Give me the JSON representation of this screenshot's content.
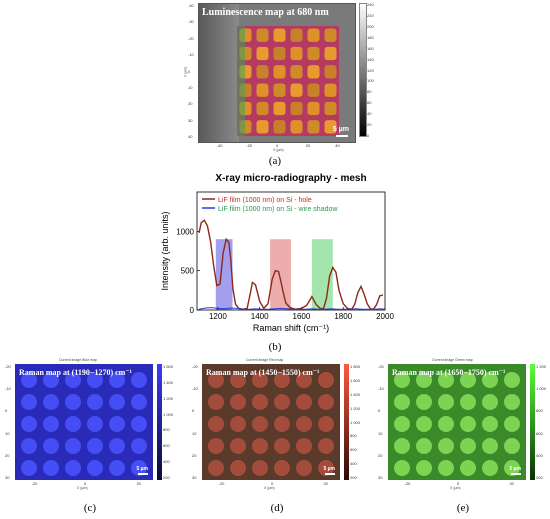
{
  "figure": {
    "panel_a": {
      "label": "(a)",
      "title": "Luminescence map at 680 nm",
      "scalebar": "5 µm",
      "colorbar_ticks": [
        "240",
        "220",
        "200",
        "180",
        "160",
        "140",
        "120",
        "100",
        "80",
        "60",
        "40",
        "20",
        "0"
      ],
      "y_ticks": [
        "-40",
        "-30",
        "-20",
        "-10",
        "0",
        "10",
        "20",
        "30",
        "40"
      ],
      "x_ticks": [
        "-40",
        "-20",
        "0",
        "20",
        "40"
      ],
      "x_label": "X (µm)",
      "y_label": "Y (µm)"
    },
    "panel_b": {
      "label": "(b)",
      "title": "X-ray micro-radiography - mesh",
      "legend": [
        {
          "text": "LiF film (1000 nm) on Si - hole",
          "color": "#8b2a1a"
        },
        {
          "text": "LiF film (1000 nm) on Si - wire shadow",
          "color": "#2a3fcf"
        }
      ]
    },
    "panel_c": {
      "label": "(c)",
      "header": "Current image    Blue map",
      "title": "Raman map at (1190−1270) cm⁻¹",
      "scalebar": "5 µm",
      "colorbar_ticks": [
        "1 600",
        "1 400",
        "1 200",
        "1 000",
        "800",
        "600",
        "400",
        "200"
      ],
      "y_ticks": [
        "-20",
        "-10",
        "0",
        "10",
        "20",
        "30"
      ],
      "x_ticks": [
        "-20",
        "0",
        "20"
      ],
      "x_label": "X (µm)",
      "y_label": "Y (µm)"
    },
    "panel_d": {
      "label": "(d)",
      "header": "Current image    Red map",
      "title": "Raman map at (1450−1550) cm⁻¹",
      "scalebar": "5 µm",
      "colorbar_ticks": [
        "1 800",
        "1 600",
        "1 400",
        "1 200",
        "1 000",
        "800",
        "600",
        "400",
        "200"
      ],
      "y_ticks": [
        "-20",
        "-10",
        "0",
        "10",
        "20",
        "30"
      ],
      "x_ticks": [
        "-20",
        "0",
        "20"
      ],
      "x_label": "X (µm)",
      "y_label": "Y (µm)"
    },
    "panel_e": {
      "label": "(e)",
      "header": "Current image    Green map",
      "title": "Raman map at (1650−1750) cm⁻¹",
      "scalebar": "5 µm",
      "colorbar_ticks": [
        "1 200",
        "1 000",
        "800",
        "600",
        "400",
        "200"
      ],
      "y_ticks": [
        "-20",
        "-10",
        "0",
        "10",
        "20",
        "30"
      ],
      "x_ticks": [
        "-20",
        "0",
        "20"
      ],
      "x_label": "X (µm)",
      "y_label": "Y (µm)"
    }
  },
  "chart_data": {
    "type": "line",
    "title": "X-ray micro-radiography - mesh",
    "xlabel": "Raman shift (cm⁻¹)",
    "ylabel": "Intensity (arb. units)",
    "xlim": [
      1100,
      2000
    ],
    "ylim": [
      0,
      1500
    ],
    "x_ticks": [
      1200,
      1400,
      1600,
      1800,
      2000
    ],
    "y_ticks": [
      0,
      500,
      1000
    ],
    "legend_placement": "top-left",
    "series": [
      {
        "name": "LiF film (1000 nm) on Si - hole",
        "color": "#8b2a1a",
        "x": [
          1110,
          1120,
          1135,
          1150,
          1165,
          1180,
          1195,
          1210,
          1225,
          1240,
          1252,
          1262,
          1272,
          1285,
          1300,
          1320,
          1340,
          1355,
          1365,
          1380,
          1400,
          1420,
          1440,
          1460,
          1475,
          1490,
          1500,
          1512,
          1525,
          1545,
          1570,
          1600,
          1625,
          1650,
          1670,
          1690,
          1705,
          1720,
          1735,
          1750,
          1765,
          1780,
          1800,
          1820,
          1840,
          1855,
          1870,
          1885,
          1900,
          1915,
          1930,
          1945,
          1960,
          1975,
          1990
        ],
        "y": [
          980,
          1110,
          1140,
          1070,
          870,
          560,
          310,
          330,
          720,
          900,
          860,
          640,
          270,
          70,
          20,
          10,
          20,
          210,
          350,
          320,
          110,
          20,
          80,
          390,
          500,
          490,
          380,
          230,
          90,
          30,
          10,
          20,
          60,
          170,
          70,
          20,
          15,
          150,
          430,
          540,
          480,
          250,
          80,
          20,
          10,
          70,
          220,
          300,
          200,
          80,
          15,
          10,
          70,
          180,
          190
        ]
      },
      {
        "name": "LiF film (1000 nm) on Si - wire shadow",
        "color": "#2a3fcf",
        "x": [
          1110,
          1140,
          1170,
          1200,
          1230,
          1260,
          1290,
          1320,
          1350,
          1380,
          1410,
          1440,
          1470,
          1500,
          1530,
          1560,
          1590,
          1620,
          1650,
          1680,
          1710,
          1740,
          1770,
          1800,
          1830,
          1860,
          1890,
          1920,
          1950,
          1980,
          2000
        ],
        "y": [
          10,
          25,
          30,
          20,
          15,
          25,
          20,
          10,
          10,
          15,
          10,
          10,
          15,
          20,
          15,
          10,
          10,
          10,
          15,
          10,
          10,
          15,
          10,
          10,
          10,
          15,
          10,
          10,
          10,
          15,
          10
        ]
      }
    ],
    "highlight_bands": [
      {
        "range": [
          1190,
          1270
        ],
        "color": "#5a4fe0"
      },
      {
        "range": [
          1450,
          1550
        ],
        "color": "#e06a6a"
      },
      {
        "range": [
          1650,
          1750
        ],
        "color": "#5ad06a"
      }
    ]
  }
}
